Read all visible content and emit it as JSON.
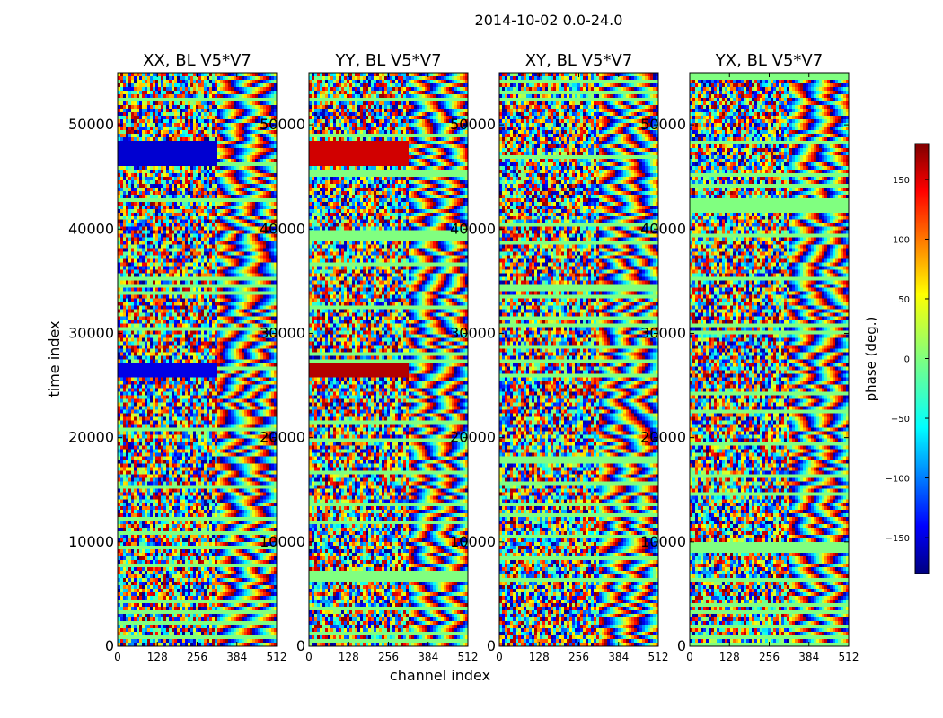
{
  "chart_data": {
    "type": "heatmap",
    "title": "2014-10-02 0.0-24.0",
    "xlabel": "channel index",
    "ylabel": "time index",
    "xlim": [
      0,
      512
    ],
    "ylim": [
      0,
      55000
    ],
    "xticks": [
      "0",
      "128",
      "256",
      "384",
      "512"
    ],
    "yticks": [
      "0",
      "10000",
      "20000",
      "30000",
      "40000",
      "50000"
    ],
    "ytick_values": [
      0,
      10000,
      20000,
      30000,
      40000,
      50000
    ],
    "xtick_values": [
      0,
      128,
      256,
      384,
      512
    ],
    "panels": [
      {
        "title": "XX, BL V5*V7"
      },
      {
        "title": "YY, BL V5*V7"
      },
      {
        "title": "XY, BL V5*V7"
      },
      {
        "title": "YX, BL V5*V7"
      }
    ],
    "colorbar": {
      "label": "phase (deg.)",
      "range": [
        -180,
        180
      ],
      "ticks": [
        "150",
        "100",
        "50",
        "0",
        "−50",
        "−100",
        "−150"
      ],
      "tick_values": [
        150,
        100,
        50,
        0,
        -50,
        -100,
        -150
      ],
      "colormap": "jet"
    }
  }
}
